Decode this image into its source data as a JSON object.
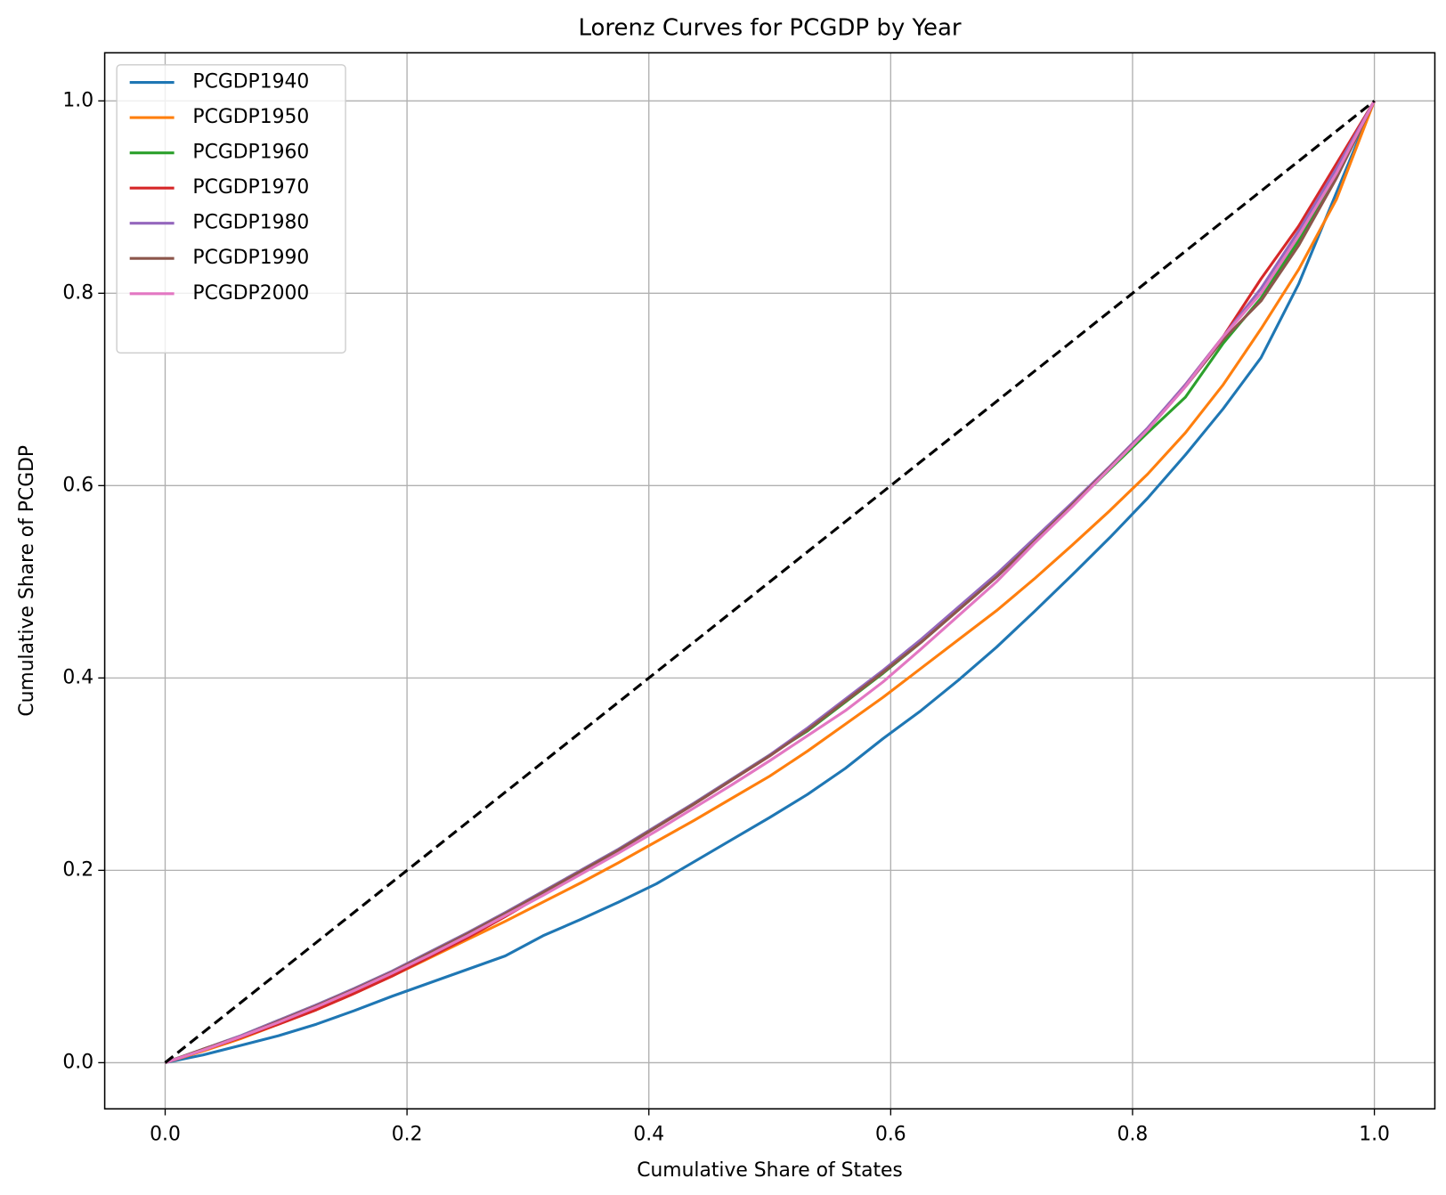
{
  "chart_data": {
    "type": "line",
    "title": "Lorenz Curves for PCGDP by Year",
    "x_label": "Cumulative Share of States",
    "y_label": "Cumulative Share of PCGDP",
    "x": [
      0,
      0.03125,
      0.0625,
      0.09375,
      0.125,
      0.15625,
      0.1875,
      0.21875,
      0.25,
      0.28125,
      0.3125,
      0.34375,
      0.375,
      0.40625,
      0.4375,
      0.46875,
      0.5,
      0.53125,
      0.5625,
      0.59375,
      0.625,
      0.65625,
      0.6875,
      0.71875,
      0.75,
      0.78125,
      0.8125,
      0.84375,
      0.875,
      0.90625,
      0.9375,
      0.96875,
      1
    ],
    "series": [
      {
        "name": "PCGDP1940",
        "color": "#1f77b4",
        "values": [
          0,
          0.008,
          0.018,
          0.028,
          0.04,
          0.054,
          0.069,
          0.083,
          0.097,
          0.111,
          0.132,
          0.149,
          0.167,
          0.186,
          0.209,
          0.232,
          0.255,
          0.279,
          0.306,
          0.337,
          0.366,
          0.398,
          0.432,
          0.469,
          0.507,
          0.546,
          0.587,
          0.632,
          0.68,
          0.733,
          0.81,
          0.905,
          1
        ]
      },
      {
        "name": "PCGDP1950",
        "color": "#ff7f0e",
        "values": [
          0,
          0.012,
          0.025,
          0.04,
          0.055,
          0.072,
          0.09,
          0.109,
          0.128,
          0.147,
          0.167,
          0.187,
          0.208,
          0.23,
          0.252,
          0.275,
          0.298,
          0.324,
          0.352,
          0.38,
          0.41,
          0.44,
          0.47,
          0.503,
          0.538,
          0.574,
          0.612,
          0.655,
          0.705,
          0.763,
          0.825,
          0.898,
          1
        ]
      },
      {
        "name": "PCGDP1960",
        "color": "#2ca02c",
        "values": [
          0,
          0.014,
          0.028,
          0.044,
          0.06,
          0.077,
          0.095,
          0.115,
          0.135,
          0.156,
          0.178,
          0.2,
          0.222,
          0.246,
          0.27,
          0.295,
          0.32,
          0.345,
          0.375,
          0.405,
          0.437,
          0.471,
          0.505,
          0.542,
          0.579,
          0.617,
          0.655,
          0.692,
          0.748,
          0.795,
          0.855,
          0.925,
          1
        ]
      },
      {
        "name": "PCGDP1970",
        "color": "#d62728",
        "values": [
          0,
          0.013,
          0.026,
          0.04,
          0.055,
          0.072,
          0.09,
          0.11,
          0.13,
          0.152,
          0.175,
          0.198,
          0.221,
          0.245,
          0.269,
          0.294,
          0.319,
          0.347,
          0.376,
          0.406,
          0.438,
          0.472,
          0.506,
          0.543,
          0.58,
          0.619,
          0.659,
          0.705,
          0.755,
          0.815,
          0.87,
          0.935,
          1
        ]
      },
      {
        "name": "PCGDP1980",
        "color": "#9467bd",
        "values": [
          0,
          0.014,
          0.028,
          0.044,
          0.06,
          0.077,
          0.095,
          0.115,
          0.135,
          0.156,
          0.178,
          0.2,
          0.222,
          0.246,
          0.27,
          0.295,
          0.32,
          0.348,
          0.378,
          0.408,
          0.44,
          0.474,
          0.508,
          0.545,
          0.582,
          0.62,
          0.66,
          0.705,
          0.755,
          0.805,
          0.865,
          0.93,
          1
        ]
      },
      {
        "name": "PCGDP1990",
        "color": "#8c564b",
        "values": [
          0,
          0.014,
          0.027,
          0.043,
          0.059,
          0.076,
          0.094,
          0.114,
          0.134,
          0.155,
          0.177,
          0.199,
          0.221,
          0.245,
          0.269,
          0.294,
          0.319,
          0.346,
          0.376,
          0.406,
          0.437,
          0.471,
          0.505,
          0.542,
          0.58,
          0.619,
          0.658,
          0.703,
          0.752,
          0.792,
          0.85,
          0.92,
          1
        ]
      },
      {
        "name": "PCGDP2000",
        "color": "#e377c2",
        "values": [
          0,
          0.013,
          0.027,
          0.042,
          0.058,
          0.075,
          0.093,
          0.112,
          0.132,
          0.153,
          0.174,
          0.196,
          0.218,
          0.241,
          0.265,
          0.289,
          0.314,
          0.34,
          0.366,
          0.396,
          0.43,
          0.465,
          0.5,
          0.54,
          0.578,
          0.618,
          0.658,
          0.703,
          0.755,
          0.8,
          0.86,
          0.925,
          1
        ]
      }
    ],
    "reference_line": {
      "x": [
        0,
        1
      ],
      "y": [
        0,
        1
      ],
      "color": "#000000"
    },
    "xlim": [
      -0.05,
      1.05
    ],
    "ylim": [
      -0.048,
      1.05
    ],
    "xticks": [
      {
        "value": 0,
        "label": "0.0"
      },
      {
        "value": 0.2,
        "label": "0.2"
      },
      {
        "value": 0.4,
        "label": "0.4"
      },
      {
        "value": 0.6,
        "label": "0.6"
      },
      {
        "value": 0.8,
        "label": "0.8"
      },
      {
        "value": 1,
        "label": "1.0"
      }
    ],
    "yticks": [
      {
        "value": 0,
        "label": "0.0"
      },
      {
        "value": 0.2,
        "label": "0.2"
      },
      {
        "value": 0.4,
        "label": "0.4"
      },
      {
        "value": 0.6,
        "label": "0.6"
      },
      {
        "value": 0.8,
        "label": "0.8"
      },
      {
        "value": 1,
        "label": "1.0"
      }
    ],
    "grid": true,
    "legend": "upper-left"
  }
}
